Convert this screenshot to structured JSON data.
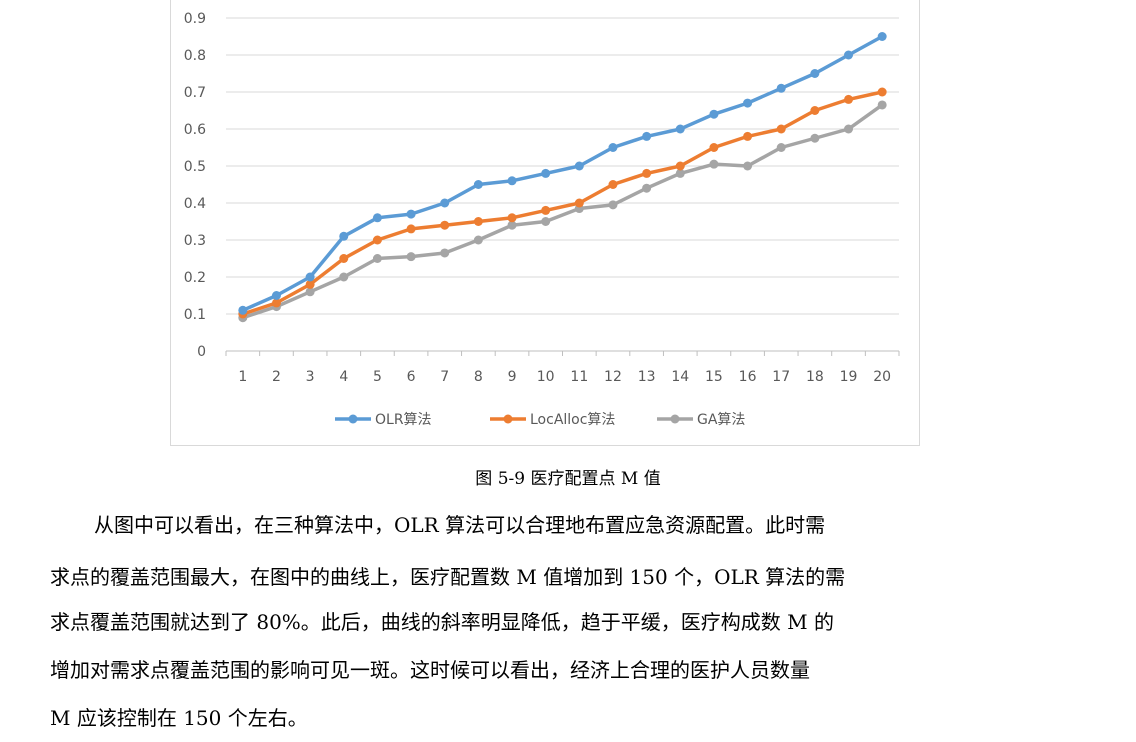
{
  "caption": "图 5-9 医疗配置点 M 值",
  "paragraph_lines": [
    "从图中可以看出，在三种算法中，OLR 算法可以合理地布置应急资源配置。此时需",
    "求点的覆盖范围最大，在图中的曲线上，医疗配置数 M 值增加到 150 个，OLR 算法的需",
    "求点覆盖范围就达到了 80%。此后，曲线的斜率明显降低，趋于平缓，医疗构成数 M 的",
    "增加对需求点覆盖范围的影响可见一斑。这时候可以看出，经济上合理的医护人员数量",
    "M 应该控制在 150 个左右。"
  ],
  "chart_data": {
    "type": "line",
    "title": "",
    "xlabel": "",
    "ylabel": "",
    "x": [
      1,
      2,
      3,
      4,
      5,
      6,
      7,
      8,
      9,
      10,
      11,
      12,
      13,
      14,
      15,
      16,
      17,
      18,
      19,
      20
    ],
    "x_tick_labels": [
      "1",
      "2",
      "3",
      "4",
      "5",
      "6",
      "7",
      "8",
      "9",
      "10",
      "11",
      "12",
      "13",
      "14",
      "15",
      "16",
      "17",
      "18",
      "19",
      "20"
    ],
    "ylim": [
      0,
      0.9
    ],
    "y_ticks": [
      0,
      0.1,
      0.2,
      0.3,
      0.4,
      0.5,
      0.6,
      0.7,
      0.8,
      0.9
    ],
    "y_tick_labels": [
      "0",
      "0.1",
      "0.2",
      "0.3",
      "0.4",
      "0.5",
      "0.6",
      "0.7",
      "0.8",
      "0.9"
    ],
    "grid": true,
    "legend_position": "bottom",
    "series": [
      {
        "name": "OLR算法",
        "color": "#5B9BD5",
        "values": [
          0.11,
          0.15,
          0.2,
          0.31,
          0.36,
          0.37,
          0.4,
          0.45,
          0.46,
          0.48,
          0.5,
          0.55,
          0.58,
          0.6,
          0.64,
          0.67,
          0.71,
          0.75,
          0.8,
          0.85
        ]
      },
      {
        "name": "LocAlloc算法",
        "color": "#ED7D31",
        "values": [
          0.1,
          0.13,
          0.18,
          0.25,
          0.3,
          0.33,
          0.34,
          0.35,
          0.36,
          0.38,
          0.4,
          0.45,
          0.48,
          0.5,
          0.55,
          0.58,
          0.6,
          0.65,
          0.68,
          0.7
        ]
      },
      {
        "name": "GA算法",
        "color": "#A5A5A5",
        "values": [
          0.09,
          0.12,
          0.16,
          0.2,
          0.25,
          0.255,
          0.265,
          0.3,
          0.34,
          0.35,
          0.385,
          0.395,
          0.44,
          0.48,
          0.505,
          0.5,
          0.55,
          0.575,
          0.6,
          0.665
        ]
      }
    ]
  }
}
